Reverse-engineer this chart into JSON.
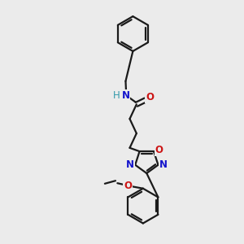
{
  "bg_color": "#ebebeb",
  "bond_color": "#1a1a1a",
  "N_color": "#1414cc",
  "O_color": "#cc1414",
  "H_color": "#3399aa",
  "line_width": 1.6,
  "font_size_atom": 8.5,
  "fig_size": [
    3.0,
    3.0
  ],
  "dpi": 100,
  "xlim": [
    0,
    10
  ],
  "ylim": [
    0,
    10
  ]
}
